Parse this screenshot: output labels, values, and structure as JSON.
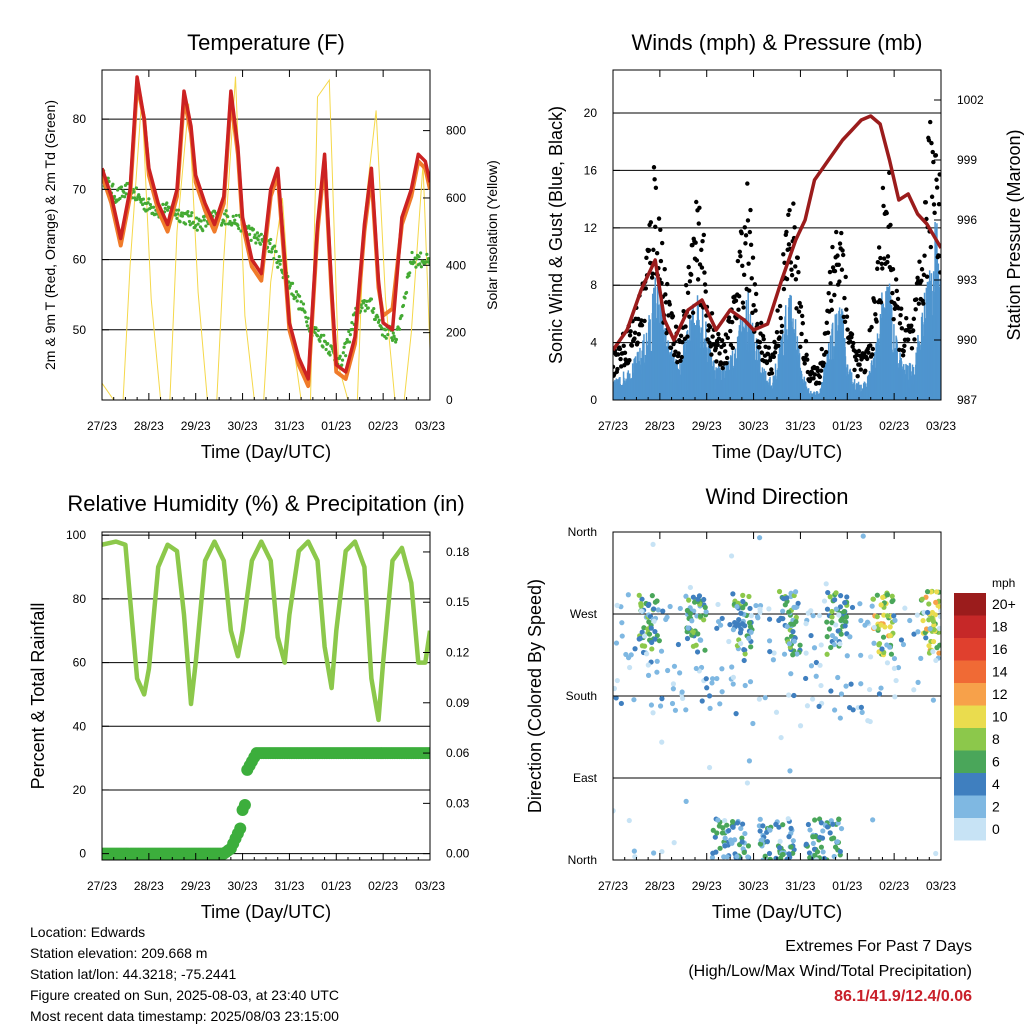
{
  "info": {
    "location": "Location: Edwards",
    "elevation": "Station elevation: 209.668 m",
    "latlon": "Station lat/lon: 44.3218; -75.2441",
    "created": "Figure created on Sun, 2025-08-03, at 23:40 UTC",
    "latest": "Most recent data timestamp: 2025/08/03 23:15:00"
  },
  "extremes": {
    "line1": "Extremes For Past 7 Days",
    "line2": "(High/Low/Max Wind/Total Precipitation)",
    "values": "86.1/41.9/12.4/0.06"
  },
  "chart_data": [
    {
      "type": "line",
      "title": "Temperature (F)",
      "xlabel": "Time (Day/UTC)",
      "ylabel": "2m & 9m T (Red, Orange) & 2m Td (Green)",
      "y2label": "Solar Insolation (Yellow)",
      "x_ticks": [
        "27/23",
        "28/23",
        "29/23",
        "30/23",
        "31/23",
        "01/23",
        "02/23",
        "03/23"
      ],
      "xlim": [
        0,
        7
      ],
      "ylim": [
        40,
        87
      ],
      "y_ticks": [
        50,
        60,
        70,
        80
      ],
      "y2lim": [
        0,
        980
      ],
      "y2_ticks": [
        0,
        200,
        400,
        600,
        800
      ],
      "grid": true,
      "series": [
        {
          "name": "2m T",
          "color": "#cc2222",
          "x": [
            0,
            0.2,
            0.4,
            0.6,
            0.75,
            0.9,
            1.0,
            1.2,
            1.4,
            1.6,
            1.75,
            1.9,
            2.0,
            2.2,
            2.4,
            2.6,
            2.75,
            2.9,
            3.0,
            3.2,
            3.4,
            3.6,
            3.75,
            3.9,
            4.0,
            4.2,
            4.4,
            4.6,
            4.75,
            4.9,
            5.0,
            5.2,
            5.4,
            5.6,
            5.75,
            5.9,
            6.0,
            6.2,
            6.4,
            6.6,
            6.75,
            6.9,
            7.0
          ],
          "y": [
            73,
            69,
            63,
            70,
            86,
            80,
            73,
            68,
            65,
            70,
            84,
            79,
            72,
            68,
            65,
            69,
            84,
            76,
            66,
            60,
            58,
            70,
            73,
            60,
            51,
            46,
            43,
            65,
            75,
            56,
            45,
            44,
            49,
            65,
            73,
            57,
            51,
            50,
            66,
            70,
            75,
            74,
            71
          ]
        },
        {
          "name": "9m T",
          "color": "#f07b2a",
          "x": [
            0,
            0.2,
            0.4,
            0.6,
            0.75,
            0.9,
            1.0,
            1.2,
            1.4,
            1.6,
            1.75,
            1.9,
            2.0,
            2.2,
            2.4,
            2.6,
            2.75,
            2.9,
            3.0,
            3.2,
            3.4,
            3.6,
            3.75,
            3.9,
            4.0,
            4.2,
            4.4,
            4.6,
            4.75,
            4.9,
            5.0,
            5.2,
            5.4,
            5.6,
            5.75,
            5.9,
            6.0,
            6.2,
            6.4,
            6.6,
            6.75,
            6.9,
            7.0
          ],
          "y": [
            72,
            68,
            62,
            69,
            85,
            80,
            72,
            67,
            64,
            69,
            83,
            78,
            71,
            67,
            64,
            68,
            83,
            75,
            65,
            59,
            57,
            69,
            72,
            59,
            50,
            45,
            42,
            64,
            74,
            55,
            44,
            43,
            48,
            64,
            72,
            56,
            52,
            53,
            65,
            69,
            74,
            73,
            70
          ]
        },
        {
          "name": "2m Td",
          "color": "#44aa33",
          "x": [
            0,
            0.3,
            0.6,
            0.9,
            1.2,
            1.5,
            1.8,
            2.1,
            2.4,
            2.7,
            3.0,
            3.3,
            3.6,
            3.9,
            4.2,
            4.5,
            4.8,
            5.1,
            5.4,
            5.7,
            6.0,
            6.3,
            6.6,
            6.9,
            7.0
          ],
          "y": [
            72,
            69,
            70,
            68,
            67,
            67,
            66,
            65,
            66,
            66,
            65,
            63,
            62,
            58,
            54,
            50,
            48,
            45,
            52,
            54,
            50,
            49,
            60,
            60,
            59
          ]
        },
        {
          "name": "Solar Insolation",
          "color": "#f5d84a",
          "axis": "y2",
          "x": [
            0,
            0.25,
            0.45,
            0.6,
            0.85,
            1.05,
            1.25,
            1.45,
            1.6,
            1.85,
            2.05,
            2.25,
            2.45,
            2.6,
            2.85,
            3.05,
            3.25,
            3.45,
            3.6,
            3.85,
            4.05,
            4.25,
            4.45,
            4.6,
            4.85,
            5.05,
            5.25,
            5.45,
            5.6,
            5.85,
            6.05,
            6.25,
            6.45,
            6.6,
            6.85,
            7.0
          ],
          "y": [
            50,
            0,
            0,
            400,
            900,
            300,
            0,
            0,
            500,
            880,
            320,
            0,
            0,
            420,
            960,
            250,
            0,
            0,
            350,
            600,
            200,
            0,
            0,
            900,
            950,
            100,
            0,
            0,
            550,
            860,
            300,
            0,
            0,
            200,
            700,
            150
          ]
        }
      ]
    },
    {
      "type": "scatter",
      "title": "Winds (mph) & Pressure (mb)",
      "xlabel": "Time (Day/UTC)",
      "ylabel": "Sonic Wind & Gust (Blue, Black)",
      "y2label": "Station Pressure (Maroon)",
      "x_ticks": [
        "27/23",
        "28/23",
        "29/23",
        "30/23",
        "31/23",
        "01/23",
        "02/23",
        "03/23"
      ],
      "xlim": [
        0,
        7
      ],
      "ylim": [
        0,
        23
      ],
      "y_ticks": [
        0,
        4,
        8,
        12,
        16,
        20
      ],
      "y2lim": [
        987,
        1003.5
      ],
      "y2_ticks": [
        987,
        990,
        993,
        996,
        999,
        1002
      ],
      "grid": true,
      "series": [
        {
          "name": "Sonic Wind",
          "color": "#4f95cf",
          "x": [
            0,
            0.2,
            0.4,
            0.6,
            0.8,
            0.9,
            1.0,
            1.2,
            1.4,
            1.6,
            1.75,
            1.9,
            2.0,
            2.2,
            2.4,
            2.6,
            2.75,
            2.9,
            3.0,
            3.2,
            3.4,
            3.6,
            3.75,
            3.9,
            4.0,
            4.2,
            4.4,
            4.6,
            4.75,
            4.9,
            5.0,
            5.2,
            5.4,
            5.6,
            5.75,
            5.9,
            6.0,
            6.2,
            6.4,
            6.6,
            6.75,
            6.9,
            7.0
          ],
          "y": [
            1,
            1.5,
            2,
            3,
            5,
            7,
            6,
            3,
            2,
            4,
            6,
            6,
            4,
            2,
            2,
            3,
            5,
            6,
            4,
            2,
            1,
            4,
            6,
            5,
            2,
            0.5,
            0.5,
            3,
            5,
            5,
            2,
            1,
            1,
            3,
            6,
            7,
            4,
            2,
            2,
            5,
            8,
            10,
            6
          ]
        },
        {
          "name": "Gust",
          "color": "#000000",
          "x": [
            0,
            0.2,
            0.4,
            0.6,
            0.8,
            0.9,
            1.0,
            1.2,
            1.4,
            1.6,
            1.75,
            1.9,
            2.0,
            2.2,
            2.4,
            2.6,
            2.75,
            2.9,
            3.0,
            3.2,
            3.4,
            3.6,
            3.75,
            3.9,
            4.0,
            4.2,
            4.4,
            4.6,
            4.75,
            4.9,
            5.0,
            5.2,
            5.4,
            5.6,
            5.75,
            5.9,
            6.0,
            6.2,
            6.4,
            6.6,
            6.75,
            6.9,
            7.0
          ],
          "y": [
            3,
            4,
            5,
            7,
            12,
            16,
            12,
            6,
            4,
            8,
            12,
            12,
            7,
            4,
            4,
            7,
            11,
            14,
            8,
            4,
            3,
            8,
            13,
            12,
            6,
            2,
            2,
            7,
            12,
            12,
            6,
            3,
            3,
            7,
            13,
            14,
            8,
            5,
            5,
            10,
            17,
            20,
            13
          ]
        },
        {
          "name": "Station Pressure",
          "color": "#9b1c1c",
          "axis": "y2",
          "x": [
            0,
            0.3,
            0.6,
            0.9,
            1.1,
            1.3,
            1.6,
            1.9,
            2.2,
            2.5,
            2.8,
            3.0,
            3.3,
            3.6,
            3.9,
            4.1,
            4.3,
            4.6,
            4.9,
            5.1,
            5.3,
            5.5,
            5.7,
            5.9,
            6.1,
            6.3,
            6.5,
            6.7,
            6.9,
            7.0
          ],
          "y": [
            989.5,
            990.5,
            992.5,
            994,
            991,
            990,
            991.5,
            992,
            990.5,
            991.5,
            991,
            990.5,
            990.8,
            993,
            995,
            996,
            998,
            999,
            1000,
            1000.5,
            1001,
            1001.2,
            1000.8,
            999,
            997,
            997.3,
            996.3,
            995.8,
            995,
            994.6
          ]
        }
      ]
    },
    {
      "type": "line",
      "title": "Relative Humidity (%) & Precipitation (in)",
      "xlabel": "Time (Day/UTC)",
      "ylabel": "Percent & Total Rainfall",
      "x_ticks": [
        "27/23",
        "28/23",
        "29/23",
        "30/23",
        "31/23",
        "01/23",
        "02/23",
        "03/23"
      ],
      "xlim": [
        0,
        7
      ],
      "ylim": [
        -2,
        101
      ],
      "y_ticks": [
        0,
        20,
        40,
        60,
        80,
        100
      ],
      "y2lim": [
        -0.0038,
        0.1919
      ],
      "y2_ticks": [
        "0.00",
        "0.03",
        "0.06",
        "0.09",
        "0.12",
        "0.15",
        "0.18"
      ],
      "grid": true,
      "series": [
        {
          "name": "Relative Humidity",
          "color": "#8cc84b",
          "x": [
            0,
            0.3,
            0.5,
            0.6,
            0.75,
            0.9,
            1.0,
            1.2,
            1.4,
            1.6,
            1.75,
            1.9,
            2.0,
            2.2,
            2.4,
            2.6,
            2.75,
            2.9,
            3.0,
            3.2,
            3.4,
            3.6,
            3.75,
            3.9,
            4.0,
            4.2,
            4.4,
            4.6,
            4.75,
            4.9,
            5.0,
            5.2,
            5.4,
            5.6,
            5.75,
            5.9,
            6.0,
            6.2,
            6.4,
            6.6,
            6.75,
            6.9,
            7.0
          ],
          "y": [
            97,
            98,
            97,
            80,
            55,
            50,
            58,
            90,
            97,
            95,
            75,
            47,
            60,
            92,
            98,
            92,
            70,
            62,
            70,
            92,
            98,
            92,
            68,
            60,
            75,
            95,
            98,
            92,
            65,
            52,
            70,
            95,
            98,
            90,
            55,
            42,
            60,
            92,
            96,
            85,
            60,
            60,
            70
          ]
        },
        {
          "name": "Total Rainfall",
          "color": "#3cae3c",
          "axis": "y2",
          "x": [
            0,
            1,
            2,
            2.6,
            2.75,
            2.85,
            2.95,
            3.0,
            3.05,
            3.1,
            3.2,
            3.3,
            3.5,
            4,
            5,
            6,
            7
          ],
          "y": [
            0,
            0,
            0,
            0,
            0.003,
            0.009,
            0.015,
            0.026,
            0.029,
            0.05,
            0.055,
            0.06,
            0.06,
            0.06,
            0.06,
            0.06,
            0.06
          ]
        }
      ]
    },
    {
      "type": "scatter",
      "title": "Wind Direction",
      "xlabel": "Time (Day/UTC)",
      "ylabel": "Direction (Colored By Speed)",
      "x_ticks": [
        "27/23",
        "28/23",
        "29/23",
        "30/23",
        "31/23",
        "01/23",
        "02/23",
        "03/23"
      ],
      "xlim": [
        0,
        7
      ],
      "y_ticks": [
        "North",
        "East",
        "South",
        "West",
        "North"
      ],
      "ylim": [
        0,
        360
      ],
      "grid": true,
      "colorbar_title": "mph",
      "colorbar_labels": [
        "20+",
        "18",
        "16",
        "14",
        "12",
        "10",
        "8",
        "6",
        "4",
        "2",
        "0"
      ],
      "colorbar_colors": [
        "#9b1c1c",
        "#c62828",
        "#e0402e",
        "#f06a35",
        "#f7a14a",
        "#eadc4e",
        "#8cc84b",
        "#4aa65a",
        "#3f7fbf",
        "#7fb8e2",
        "#c7e3f5"
      ],
      "points_summary": "clusters of points near West (270) during daytime and near North (0-20) overnight"
    }
  ]
}
